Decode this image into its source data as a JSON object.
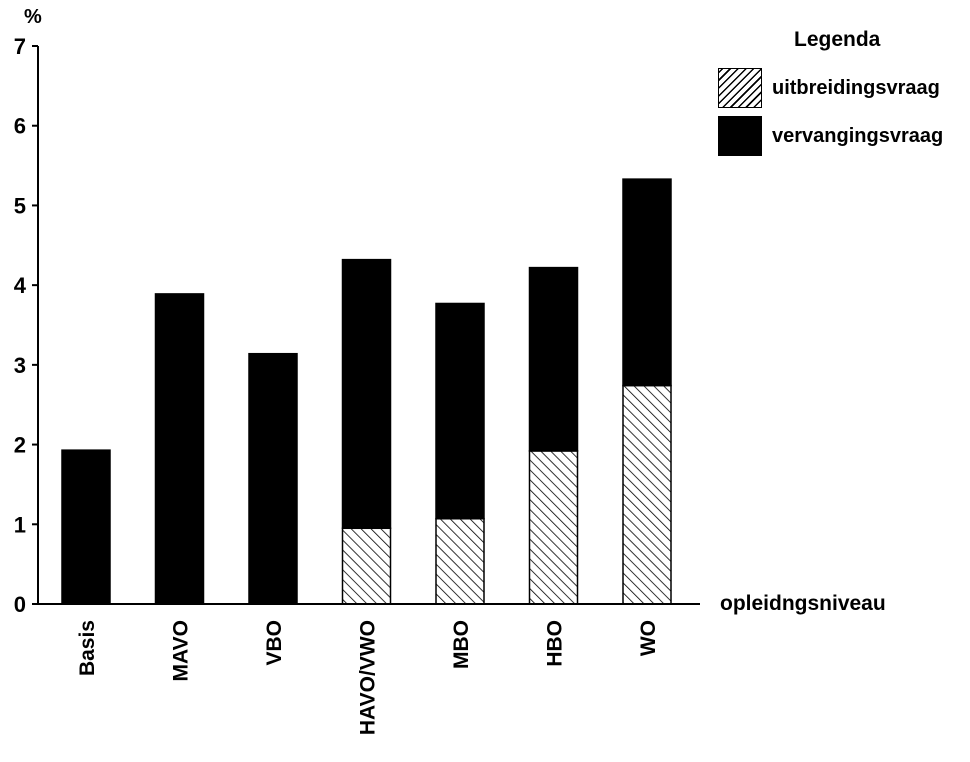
{
  "chart_data": {
    "type": "bar",
    "stacked": true,
    "ylabel": "%",
    "xlabel": "opleidngsniveau",
    "ylim": [
      0,
      7
    ],
    "yticks": [
      0,
      1,
      2,
      3,
      4,
      5,
      6,
      7
    ],
    "categories": [
      "Basis",
      "MAVO",
      "VBO",
      "HAVO/VWO",
      "MBO",
      "HBO",
      "WO"
    ],
    "series": [
      {
        "name": "uitbreidingsvraag",
        "pattern": "hatched",
        "values": [
          0,
          0,
          0,
          0.95,
          1.07,
          1.92,
          2.74
        ]
      },
      {
        "name": "vervangingsvraag",
        "pattern": "solid",
        "color": "#000000",
        "values": [
          1.93,
          3.89,
          3.14,
          3.37,
          2.7,
          2.3,
          2.59
        ]
      }
    ],
    "legend": {
      "title": "Legenda",
      "placement": "top-right"
    },
    "grid": false
  }
}
